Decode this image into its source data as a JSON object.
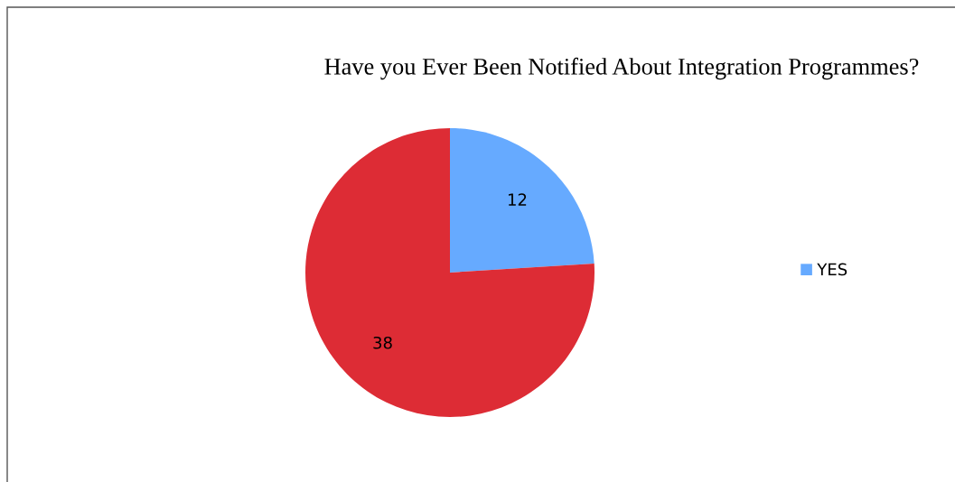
{
  "chart_data": {
    "type": "pie",
    "title": "Have you Ever Been Notified About Integration Programmes?",
    "categories": [
      "YES",
      null
    ],
    "values": [
      12,
      38
    ],
    "colors": [
      "#66aaff",
      "#dd2c35"
    ],
    "data_labels": true,
    "legend": "right"
  }
}
